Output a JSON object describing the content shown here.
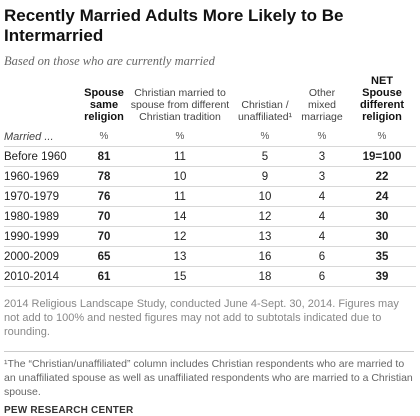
{
  "title": "Recently Married Adults More Likely to Be Intermarried",
  "subtitle": "Based on those who are currently married",
  "table": {
    "columns": [
      "Spouse same religion",
      "Christian married to spouse from different Christian tradition",
      "Christian / unaffiliated¹",
      "Other mixed marriage",
      "NET Spouse different religion"
    ],
    "row_header_label": "Married ...",
    "units": [
      "%",
      "%",
      "%",
      "%",
      "%"
    ],
    "rows": [
      [
        "Before 1960",
        81,
        11,
        5,
        3,
        "19=100"
      ],
      [
        "1960-1969",
        78,
        10,
        9,
        3,
        22
      ],
      [
        "1970-1979",
        76,
        11,
        10,
        4,
        24
      ],
      [
        "1980-1989",
        70,
        14,
        12,
        4,
        30
      ],
      [
        "1990-1999",
        70,
        12,
        13,
        4,
        30
      ],
      [
        "2000-2009",
        65,
        13,
        16,
        6,
        35
      ],
      [
        "2010-2014",
        61,
        15,
        18,
        6,
        39
      ]
    ]
  },
  "source": "2014 Religious Landscape Study, conducted June 4-Sept. 30, 2014. Figures may not add to 100% and nested figures may not add to subtotals indicated due to rounding.",
  "footnote": "¹The “Christian/unaffiliated” column includes Christian respondents who are married to an unaffiliated spouse as well as unaffiliated respondents who are married to a Christian spouse.",
  "credit": "PEW RESEARCH CENTER"
}
